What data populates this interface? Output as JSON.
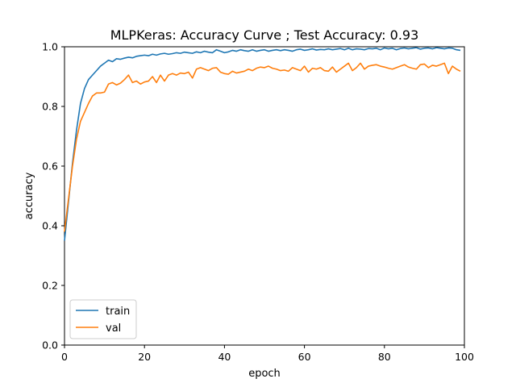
{
  "chart_data": {
    "type": "line",
    "title": "MLPKeras: Accuracy Curve ; Test Accuracy: 0.93",
    "xlabel": "epoch",
    "ylabel": "accuracy",
    "xlim": [
      0,
      100
    ],
    "ylim": [
      0.0,
      1.0
    ],
    "xticks": [
      "0",
      "20",
      "40",
      "60",
      "80",
      "100"
    ],
    "yticks": [
      "0.0",
      "0.2",
      "0.4",
      "0.6",
      "0.8",
      "1.0"
    ],
    "grid": false,
    "legend": "lower-left",
    "x": [
      0,
      1,
      2,
      3,
      4,
      5,
      6,
      7,
      8,
      9,
      10,
      11,
      12,
      13,
      14,
      15,
      16,
      17,
      18,
      19,
      20,
      21,
      22,
      23,
      24,
      25,
      26,
      27,
      28,
      29,
      30,
      31,
      32,
      33,
      34,
      35,
      36,
      37,
      38,
      39,
      40,
      41,
      42,
      43,
      44,
      45,
      46,
      47,
      48,
      49,
      50,
      51,
      52,
      53,
      54,
      55,
      56,
      57,
      58,
      59,
      60,
      61,
      62,
      63,
      64,
      65,
      66,
      67,
      68,
      69,
      70,
      71,
      72,
      73,
      74,
      75,
      76,
      77,
      78,
      79,
      80,
      81,
      82,
      83,
      84,
      85,
      86,
      87,
      88,
      89,
      90,
      91,
      92,
      93,
      94,
      95,
      96,
      97,
      98,
      99
    ],
    "series": [
      {
        "name": "train",
        "color": "#1f77b4",
        "values": [
          0.35,
          0.48,
          0.61,
          0.72,
          0.81,
          0.86,
          0.89,
          0.905,
          0.92,
          0.935,
          0.945,
          0.955,
          0.95,
          0.96,
          0.958,
          0.962,
          0.965,
          0.963,
          0.968,
          0.97,
          0.972,
          0.97,
          0.975,
          0.972,
          0.976,
          0.978,
          0.975,
          0.977,
          0.98,
          0.978,
          0.982,
          0.98,
          0.978,
          0.983,
          0.98,
          0.985,
          0.982,
          0.98,
          0.99,
          0.985,
          0.98,
          0.983,
          0.988,
          0.985,
          0.99,
          0.987,
          0.985,
          0.99,
          0.985,
          0.988,
          0.99,
          0.985,
          0.988,
          0.99,
          0.987,
          0.99,
          0.988,
          0.985,
          0.99,
          0.992,
          0.988,
          0.99,
          0.993,
          0.989,
          0.991,
          0.99,
          0.993,
          0.99,
          0.992,
          0.994,
          0.99,
          0.995,
          0.99,
          0.993,
          0.992,
          0.99,
          0.994,
          0.993,
          0.995,
          0.99,
          0.996,
          0.993,
          0.995,
          0.99,
          0.994,
          0.996,
          0.993,
          0.995,
          0.997,
          0.992,
          0.995,
          0.996,
          0.993,
          0.997,
          0.995,
          0.993,
          0.996,
          0.995,
          0.99,
          0.988
        ]
      },
      {
        "name": "val",
        "color": "#ff7f0e",
        "values": [
          0.38,
          0.49,
          0.6,
          0.69,
          0.75,
          0.78,
          0.81,
          0.835,
          0.845,
          0.845,
          0.848,
          0.875,
          0.88,
          0.872,
          0.878,
          0.89,
          0.905,
          0.88,
          0.885,
          0.875,
          0.882,
          0.885,
          0.9,
          0.88,
          0.905,
          0.885,
          0.905,
          0.91,
          0.905,
          0.912,
          0.91,
          0.915,
          0.895,
          0.925,
          0.93,
          0.925,
          0.92,
          0.928,
          0.93,
          0.915,
          0.91,
          0.908,
          0.918,
          0.912,
          0.915,
          0.918,
          0.925,
          0.92,
          0.928,
          0.932,
          0.93,
          0.935,
          0.928,
          0.925,
          0.92,
          0.922,
          0.918,
          0.93,
          0.925,
          0.92,
          0.935,
          0.915,
          0.928,
          0.925,
          0.93,
          0.92,
          0.918,
          0.932,
          0.915,
          0.925,
          0.935,
          0.945,
          0.92,
          0.93,
          0.945,
          0.925,
          0.935,
          0.938,
          0.94,
          0.935,
          0.932,
          0.928,
          0.925,
          0.93,
          0.935,
          0.94,
          0.932,
          0.928,
          0.925,
          0.94,
          0.942,
          0.93,
          0.938,
          0.935,
          0.94,
          0.945,
          0.91,
          0.935,
          0.925,
          0.918
        ]
      }
    ]
  }
}
